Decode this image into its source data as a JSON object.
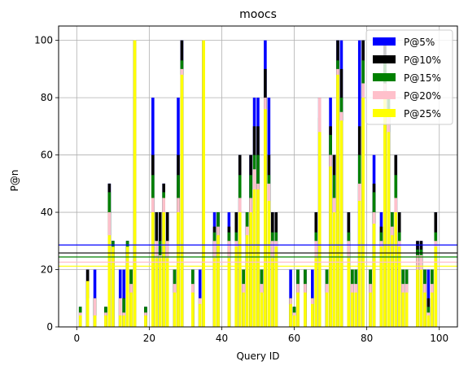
{
  "chart_data": {
    "type": "bar",
    "title": "moocs",
    "xlabel": "Query ID",
    "ylabel": "P@n",
    "xlim": [
      -5,
      105
    ],
    "ylim": [
      0,
      105
    ],
    "xticks": [
      0,
      20,
      40,
      60,
      80,
      100
    ],
    "yticks": [
      0,
      20,
      40,
      60,
      80,
      100
    ],
    "grid": true,
    "legend_position": "top-right",
    "x": [
      0,
      1,
      2,
      3,
      4,
      5,
      6,
      7,
      8,
      9,
      10,
      11,
      12,
      13,
      14,
      15,
      16,
      17,
      18,
      19,
      20,
      21,
      22,
      23,
      24,
      25,
      26,
      27,
      28,
      29,
      30,
      31,
      32,
      33,
      34,
      35,
      36,
      37,
      38,
      39,
      40,
      41,
      42,
      43,
      44,
      45,
      46,
      47,
      48,
      49,
      50,
      51,
      52,
      53,
      54,
      55,
      56,
      57,
      58,
      59,
      60,
      61,
      62,
      63,
      64,
      65,
      66,
      67,
      68,
      69,
      70,
      71,
      72,
      73,
      74,
      75,
      76,
      77,
      78,
      79,
      80,
      81,
      82,
      83,
      84,
      85,
      86,
      87,
      88,
      89,
      90,
      91,
      92,
      93,
      94,
      95,
      96,
      97,
      98,
      99
    ],
    "series": [
      {
        "name": "P@5%",
        "color": "#0000ff",
        "values": [
          0,
          7,
          0,
          20,
          0,
          20,
          0,
          0,
          7,
          50,
          30,
          0,
          20,
          20,
          30,
          20,
          100,
          0,
          0,
          7,
          0,
          80,
          40,
          40,
          50,
          40,
          0,
          20,
          80,
          100,
          0,
          0,
          20,
          0,
          20,
          100,
          0,
          0,
          40,
          40,
          0,
          0,
          40,
          0,
          40,
          60,
          20,
          40,
          60,
          80,
          80,
          20,
          100,
          80,
          40,
          40,
          0,
          0,
          0,
          20,
          7,
          20,
          0,
          20,
          0,
          20,
          40,
          80,
          0,
          20,
          80,
          60,
          100,
          100,
          0,
          40,
          20,
          20,
          100,
          100,
          0,
          20,
          60,
          0,
          40,
          100,
          80,
          40,
          60,
          40,
          20,
          20,
          0,
          0,
          30,
          30,
          20,
          20,
          20,
          40
        ]
      },
      {
        "name": "P@10%",
        "color": "#000000",
        "values": [
          0,
          7,
          0,
          20,
          0,
          10,
          0,
          0,
          7,
          50,
          30,
          0,
          10,
          10,
          30,
          20,
          100,
          0,
          0,
          7,
          0,
          60,
          40,
          40,
          50,
          40,
          0,
          20,
          60,
          100,
          0,
          0,
          20,
          0,
          10,
          100,
          0,
          0,
          35,
          40,
          0,
          0,
          35,
          0,
          40,
          60,
          20,
          40,
          60,
          70,
          70,
          20,
          90,
          60,
          40,
          40,
          0,
          0,
          0,
          10,
          7,
          20,
          0,
          20,
          0,
          10,
          40,
          80,
          0,
          20,
          70,
          60,
          100,
          90,
          0,
          40,
          20,
          20,
          70,
          100,
          0,
          20,
          50,
          0,
          35,
          100,
          80,
          40,
          60,
          40,
          20,
          20,
          0,
          0,
          30,
          30,
          20,
          10,
          20,
          40
        ]
      },
      {
        "name": "P@15%",
        "color": "#008000",
        "values": [
          0,
          7,
          0,
          10,
          0,
          10,
          0,
          0,
          7,
          47,
          30,
          0,
          10,
          10,
          30,
          20,
          100,
          0,
          0,
          7,
          0,
          53,
          30,
          30,
          47,
          30,
          0,
          20,
          53,
          93,
          0,
          0,
          20,
          0,
          10,
          100,
          0,
          0,
          33,
          40,
          0,
          0,
          33,
          0,
          33,
          53,
          20,
          40,
          53,
          60,
          60,
          20,
          80,
          53,
          33,
          33,
          0,
          0,
          0,
          10,
          7,
          20,
          0,
          20,
          0,
          10,
          33,
          73,
          0,
          20,
          67,
          53,
          93,
          80,
          0,
          33,
          20,
          20,
          60,
          93,
          0,
          20,
          47,
          0,
          33,
          93,
          80,
          40,
          53,
          33,
          20,
          20,
          0,
          0,
          27,
          27,
          20,
          7,
          20,
          33
        ]
      },
      {
        "name": "P@20%",
        "color": "#ffc0cb",
        "values": [
          0,
          5,
          0,
          10,
          0,
          10,
          0,
          0,
          5,
          40,
          25,
          0,
          10,
          5,
          25,
          15,
          100,
          0,
          0,
          5,
          0,
          45,
          30,
          25,
          45,
          30,
          0,
          15,
          45,
          90,
          0,
          0,
          15,
          0,
          10,
          100,
          0,
          0,
          30,
          35,
          0,
          0,
          30,
          0,
          30,
          45,
          15,
          35,
          45,
          55,
          50,
          15,
          80,
          50,
          30,
          30,
          0,
          0,
          0,
          10,
          5,
          15,
          0,
          15,
          0,
          10,
          30,
          80,
          0,
          15,
          60,
          45,
          90,
          75,
          0,
          30,
          15,
          15,
          50,
          85,
          0,
          15,
          40,
          0,
          30,
          85,
          75,
          35,
          45,
          30,
          15,
          15,
          0,
          0,
          25,
          25,
          15,
          5,
          15,
          30
        ]
      },
      {
        "name": "P@25%",
        "color": "#ffff00",
        "values": [
          0,
          4,
          0,
          16,
          0,
          4,
          0,
          0,
          4,
          32,
          28,
          0,
          4,
          4,
          28,
          12,
          100,
          0,
          0,
          4,
          0,
          40,
          24,
          24,
          40,
          24,
          0,
          12,
          40,
          88,
          0,
          0,
          12,
          0,
          8,
          100,
          0,
          0,
          24,
          32,
          0,
          0,
          24,
          0,
          28,
          40,
          12,
          32,
          40,
          48,
          48,
          12,
          76,
          44,
          24,
          28,
          0,
          0,
          0,
          8,
          4,
          12,
          0,
          12,
          0,
          8,
          24,
          68,
          0,
          12,
          56,
          40,
          88,
          72,
          0,
          24,
          12,
          12,
          44,
          80,
          0,
          12,
          36,
          0,
          28,
          80,
          68,
          32,
          40,
          28,
          12,
          12,
          0,
          0,
          20,
          20,
          12,
          4,
          12,
          28
        ]
      }
    ],
    "hlines": [
      {
        "series": "P@5%",
        "value": 28.6
      },
      {
        "series": "P@10%",
        "value": 25.8
      },
      {
        "series": "P@15%",
        "value": 24.4
      },
      {
        "series": "P@20%",
        "value": 22.6
      },
      {
        "series": "P@25%",
        "value": 21.2
      }
    ]
  }
}
